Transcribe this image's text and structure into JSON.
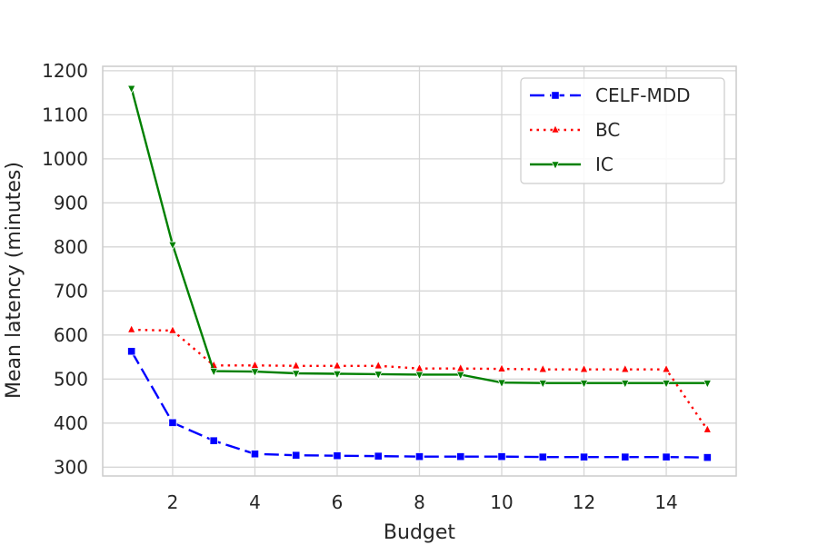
{
  "chart_data": {
    "type": "line",
    "xlabel": "Budget",
    "ylabel": "Mean latency (minutes)",
    "xlim": [
      0.3,
      15.7
    ],
    "ylim": [
      280,
      1210
    ],
    "xticks": [
      2,
      4,
      6,
      8,
      10,
      12,
      14
    ],
    "yticks": [
      300,
      400,
      500,
      600,
      700,
      800,
      900,
      1000,
      1100,
      1200
    ],
    "grid": true,
    "legend_position": "top-right",
    "x": [
      1,
      2,
      3,
      4,
      5,
      6,
      7,
      8,
      9,
      10,
      11,
      12,
      13,
      14,
      15
    ],
    "series": [
      {
        "name": "CELF-MDD",
        "color": "#0000ff",
        "dash": "dashed",
        "marker": "square",
        "values": [
          563,
          401,
          360,
          330,
          327,
          326,
          325,
          324,
          324,
          324,
          323,
          323,
          323,
          323,
          322
        ]
      },
      {
        "name": "BC",
        "color": "#ff0000",
        "dash": "dotted",
        "marker": "triangle-up",
        "values": [
          612,
          610,
          531,
          531,
          530,
          530,
          530,
          524,
          524,
          523,
          522,
          522,
          522,
          522,
          385
        ]
      },
      {
        "name": "IC",
        "color": "#008000",
        "dash": "solid",
        "marker": "triangle-down",
        "values": [
          1160,
          805,
          518,
          517,
          513,
          512,
          511,
          510,
          510,
          492,
          491,
          491,
          491,
          491,
          491
        ]
      }
    ]
  }
}
